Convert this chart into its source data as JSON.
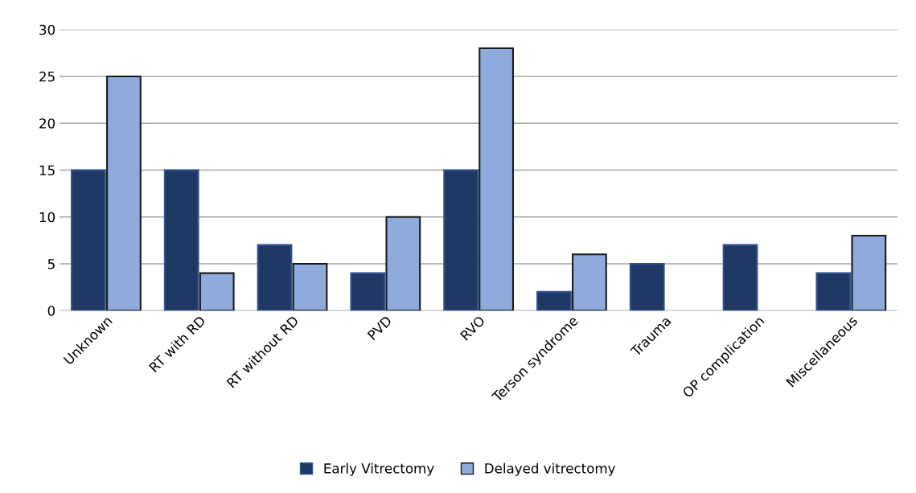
{
  "chart_data": {
    "type": "bar",
    "categories": [
      "Unknown",
      "RT with RD",
      "RT without RD",
      "PVD",
      "RVO",
      "Terson syndrome",
      "Trauma",
      "OP complication",
      "Miscellaneous"
    ],
    "series": [
      {
        "name": "Early Vitrectomy",
        "color": "#203864",
        "values": [
          15,
          15,
          7,
          4,
          15,
          2,
          5,
          7,
          4
        ]
      },
      {
        "name": "Delayed vitrectomy",
        "color": "#8faadc",
        "values": [
          25,
          4,
          5,
          10,
          28,
          6,
          null,
          null,
          8
        ]
      }
    ],
    "ylim": [
      0,
      30
    ],
    "yticks": [
      0,
      5,
      10,
      15,
      20,
      25,
      30
    ],
    "grid": "y",
    "legend": "bottom"
  }
}
